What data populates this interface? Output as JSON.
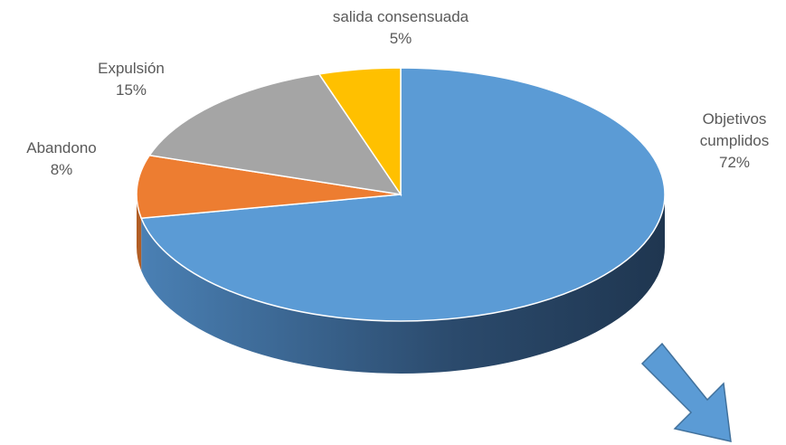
{
  "chart_data": {
    "type": "pie",
    "categories": [
      "Objetivos cumplidos",
      "Abandono",
      "Expulsión",
      "salida consensuada"
    ],
    "values": [
      72,
      8,
      15,
      5
    ],
    "value_labels": [
      "72%",
      "8%",
      "15%",
      "5%"
    ],
    "colors": [
      "#5b9bd5",
      "#ed7d31",
      "#a5a5a5",
      "#ffc000"
    ]
  }
}
